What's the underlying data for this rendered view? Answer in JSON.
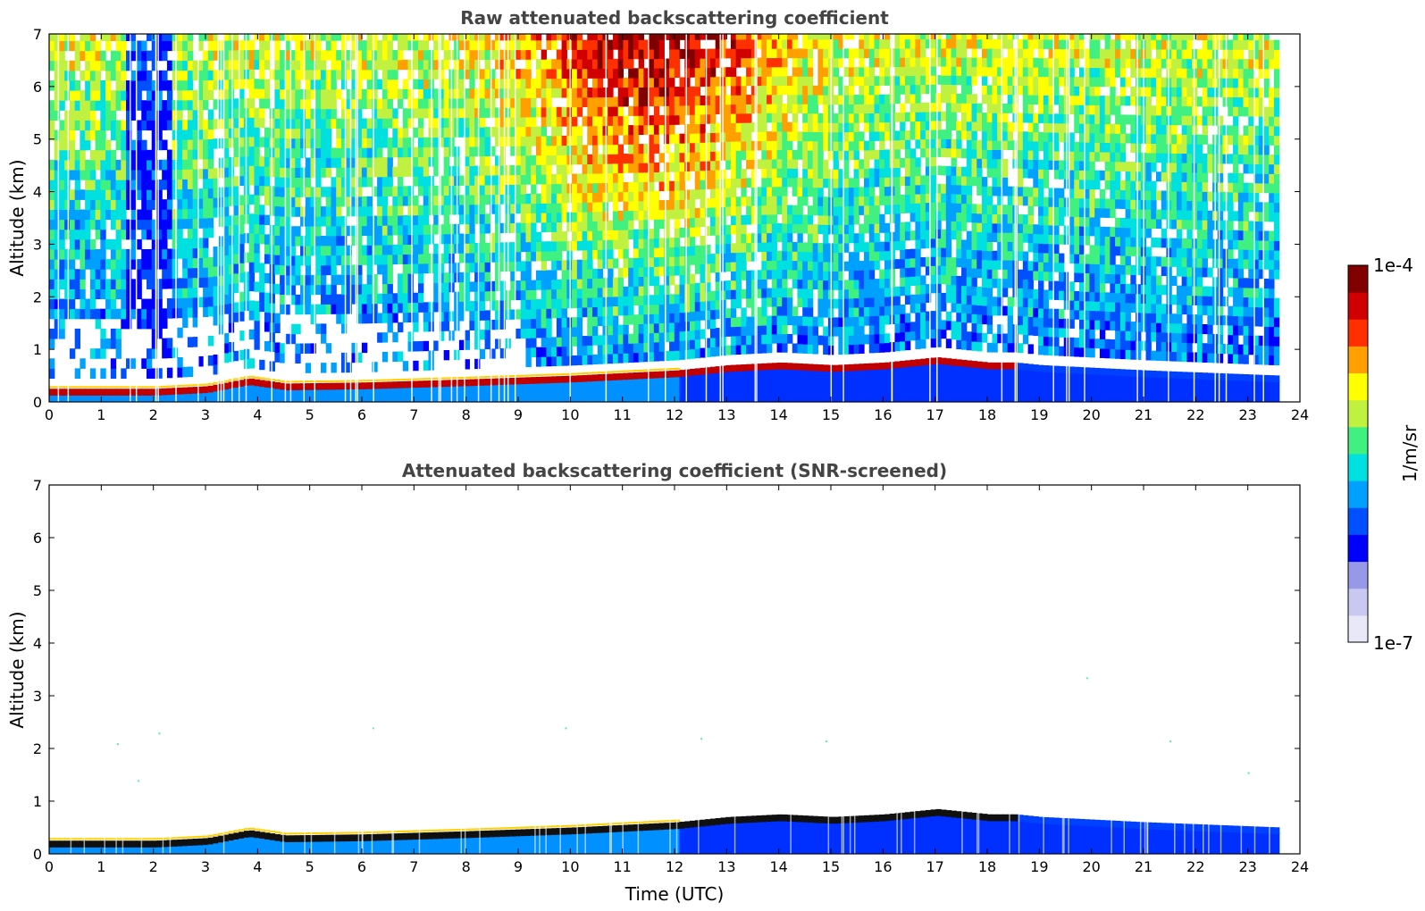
{
  "chart_data": [
    {
      "type": "heatmap",
      "title": "Raw attenuated backscattering coefficient",
      "xlabel": "",
      "ylabel": "Altitude (km)",
      "xlim": [
        0,
        24
      ],
      "ylim": [
        0,
        7
      ],
      "x_ticks": [
        "0",
        "1",
        "2",
        "3",
        "4",
        "5",
        "6",
        "7",
        "8",
        "9",
        "10",
        "11",
        "12",
        "13",
        "14",
        "15",
        "16",
        "17",
        "18",
        "19",
        "20",
        "21",
        "22",
        "23",
        "24"
      ],
      "y_ticks": [
        "0",
        "1",
        "2",
        "3",
        "4",
        "5",
        "6",
        "7"
      ],
      "data_end_hour": 23.6,
      "aerosol_layer_top_km": [
        {
          "t": 0,
          "h": 0.2
        },
        {
          "t": 2,
          "h": 0.2
        },
        {
          "t": 3,
          "h": 0.25
        },
        {
          "t": 3.8,
          "h": 0.4
        },
        {
          "t": 4.5,
          "h": 0.3
        },
        {
          "t": 6,
          "h": 0.32
        },
        {
          "t": 8,
          "h": 0.38
        },
        {
          "t": 10,
          "h": 0.45
        },
        {
          "t": 12,
          "h": 0.55
        },
        {
          "t": 13,
          "h": 0.65
        },
        {
          "t": 14,
          "h": 0.7
        },
        {
          "t": 15,
          "h": 0.65
        },
        {
          "t": 16,
          "h": 0.7
        },
        {
          "t": 17,
          "h": 0.8
        },
        {
          "t": 18,
          "h": 0.7
        },
        {
          "t": 18.5,
          "h": 0.7
        },
        {
          "t": 19,
          "h": 0.65
        },
        {
          "t": 21,
          "h": 0.55
        },
        {
          "t": 23.6,
          "h": 0.45
        }
      ]
    },
    {
      "type": "heatmap",
      "title": "Attenuated backscattering coefficient (SNR-screened)",
      "xlabel": "Time (UTC)",
      "ylabel": "Altitude (km)",
      "xlim": [
        0,
        24
      ],
      "ylim": [
        0,
        7
      ],
      "x_ticks": [
        "0",
        "1",
        "2",
        "3",
        "4",
        "5",
        "6",
        "7",
        "8",
        "9",
        "10",
        "11",
        "12",
        "13",
        "14",
        "15",
        "16",
        "17",
        "18",
        "19",
        "20",
        "21",
        "22",
        "23",
        "24"
      ],
      "y_ticks": [
        "0",
        "1",
        "2",
        "3",
        "4",
        "5",
        "6",
        "7"
      ],
      "data_end_hour": 23.6
    }
  ],
  "colorbar": {
    "label": "1/m/sr",
    "max_label": "1e-4",
    "min_label": "1e-7",
    "colors": [
      "#e8e8f8",
      "#c8c8f0",
      "#9898e8",
      "#0000ff",
      "#0050ff",
      "#00a0ff",
      "#00e0e0",
      "#40f080",
      "#c0f040",
      "#ffff00",
      "#ffa000",
      "#ff3000",
      "#d00000",
      "#800000"
    ]
  }
}
